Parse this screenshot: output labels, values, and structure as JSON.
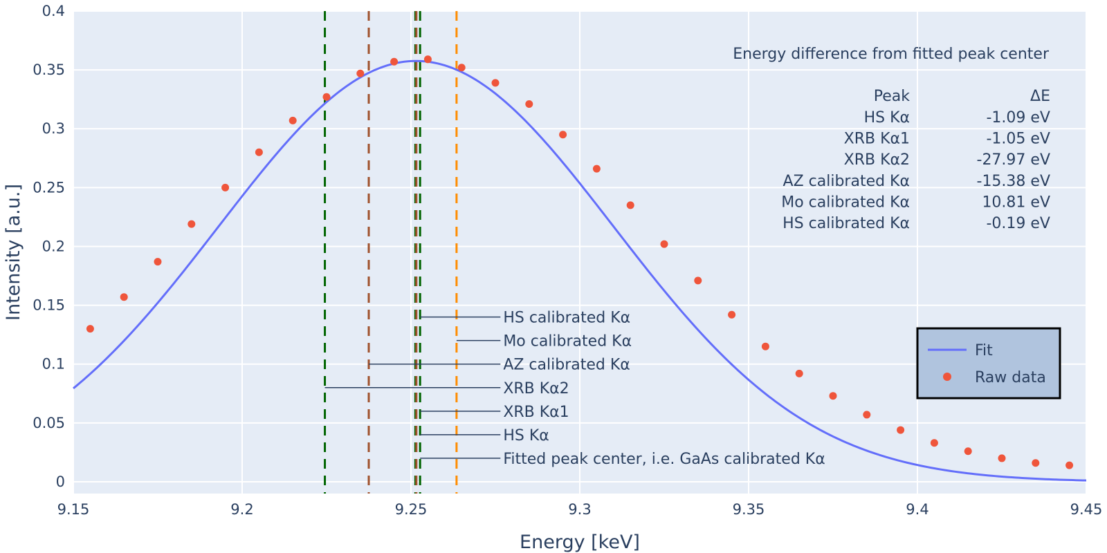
{
  "chart_data": {
    "type": "line",
    "xlabel": "Energy [keV]",
    "ylabel": "Intensity [a.u.]",
    "xlim": [
      9.15,
      9.45
    ],
    "ylim": [
      -0.01,
      0.4
    ],
    "x_ticks": [
      "9.15",
      "9.2",
      "9.25",
      "9.3",
      "9.35",
      "9.4",
      "9.45"
    ],
    "y_ticks": [
      "0",
      "0.05",
      "0.1",
      "0.15",
      "0.2",
      "0.25",
      "0.3",
      "0.35",
      "0.4"
    ],
    "grid": true,
    "colors": {
      "plot_bg": "#e5ecf6",
      "grid": "#ffffff",
      "fit_line": "#636efa",
      "raw_points": "#ef553b",
      "legend_bg": "#b0c4de",
      "legend_border": "#000000",
      "annotation_arrow": "#2a3f5f",
      "line_darkgreen": "#006400",
      "line_sienna": "#a0522d",
      "line_orange": "#ff8c00"
    },
    "series": [
      {
        "name": "Fit",
        "type": "line",
        "gaussian": {
          "amplitude": 0.3576,
          "center": 9.2515,
          "sigma": 0.0585,
          "offset": 0.0
        }
      },
      {
        "name": "Raw data",
        "type": "scatter",
        "x": [
          9.155,
          9.165,
          9.175,
          9.185,
          9.195,
          9.205,
          9.215,
          9.225,
          9.235,
          9.245,
          9.255,
          9.265,
          9.275,
          9.285,
          9.295,
          9.305,
          9.315,
          9.325,
          9.335,
          9.345,
          9.355,
          9.365,
          9.375,
          9.385,
          9.395,
          9.405,
          9.415,
          9.425,
          9.435,
          9.445
        ],
        "y": [
          0.13,
          0.157,
          0.187,
          0.219,
          0.25,
          0.28,
          0.307,
          0.327,
          0.347,
          0.357,
          0.359,
          0.352,
          0.339,
          0.321,
          0.295,
          0.266,
          0.235,
          0.202,
          0.171,
          0.142,
          0.115,
          0.092,
          0.073,
          0.057,
          0.044,
          0.033,
          0.026,
          0.02,
          0.016,
          0.014
        ]
      }
    ],
    "vertical_lines": [
      {
        "x": 9.2245,
        "color": "#006400"
      },
      {
        "x": 9.2375,
        "color": "#a0522d"
      },
      {
        "x": 9.2513,
        "color": "#006400"
      },
      {
        "x": 9.2516,
        "color": "#a0522d"
      },
      {
        "x": 9.2527,
        "color": "#006400"
      },
      {
        "x": 9.2635,
        "color": "#ff8c00"
      }
    ],
    "annotations": [
      {
        "text": "HS calibrated Kα",
        "x_from": 9.2527,
        "x_to": 9.2765,
        "y": 0.14
      },
      {
        "text": "Mo calibrated Kα",
        "x_from": 9.2635,
        "x_to": 9.2765,
        "y": 0.12
      },
      {
        "text": "AZ calibrated Kα",
        "x_from": 9.2375,
        "x_to": 9.2765,
        "y": 0.1
      },
      {
        "text": "XRB Kα2",
        "x_from": 9.2245,
        "x_to": 9.2765,
        "y": 0.08
      },
      {
        "text": "XRB Kα1",
        "x_from": 9.2527,
        "x_to": 9.2765,
        "y": 0.06
      },
      {
        "text": "HS Kα",
        "x_from": 9.2527,
        "x_to": 9.2765,
        "y": 0.04
      },
      {
        "text": "Fitted peak center, i.e. GaAs calibrated Kα",
        "x_from": 9.2527,
        "x_to": 9.2765,
        "y": 0.02
      }
    ],
    "table": {
      "title": "Energy difference from fitted peak center",
      "header": [
        "Peak",
        "ΔE"
      ],
      "rows": [
        [
          "HS Kα",
          "-1.09 eV"
        ],
        [
          "XRB Kα1",
          "-1.05 eV"
        ],
        [
          "XRB Kα2",
          "-27.97 eV"
        ],
        [
          "AZ calibrated Kα",
          "-15.38 eV"
        ],
        [
          "Mo calibrated Kα",
          "10.81 eV"
        ],
        [
          "HS calibrated Kα",
          "-0.19 eV"
        ]
      ]
    },
    "legend": {
      "placement": "bottom-right",
      "entries": [
        "Fit",
        "Raw data"
      ]
    }
  }
}
